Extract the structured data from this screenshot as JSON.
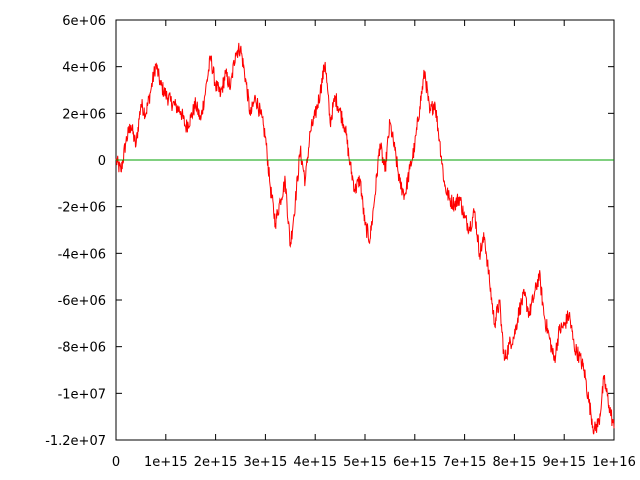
{
  "chart_data": {
    "type": "line",
    "title": "",
    "xlabel": "",
    "ylabel": "",
    "xlim": [
      0,
      1e+16
    ],
    "ylim": [
      -12000000,
      6000000
    ],
    "grid": false,
    "legend": "none",
    "x_ticks": [
      {
        "value": 0,
        "label": "0"
      },
      {
        "value": 1000000000000000.0,
        "label": "1e+15"
      },
      {
        "value": 2000000000000000.0,
        "label": "2e+15"
      },
      {
        "value": 3000000000000000.0,
        "label": "3e+15"
      },
      {
        "value": 4000000000000000.0,
        "label": "4e+15"
      },
      {
        "value": 5000000000000000.0,
        "label": "5e+15"
      },
      {
        "value": 6000000000000000.0,
        "label": "6e+15"
      },
      {
        "value": 7000000000000000.0,
        "label": "7e+15"
      },
      {
        "value": 8000000000000000.0,
        "label": "8e+15"
      },
      {
        "value": 9000000000000000.0,
        "label": "9e+15"
      },
      {
        "value": 1e+16,
        "label": "1e+16"
      }
    ],
    "y_ticks": [
      {
        "value": 6000000,
        "label": "6e+06"
      },
      {
        "value": 4000000,
        "label": "4e+06"
      },
      {
        "value": 2000000,
        "label": "2e+06"
      },
      {
        "value": 0,
        "label": "0"
      },
      {
        "value": -2000000,
        "label": "-2e+06"
      },
      {
        "value": -4000000,
        "label": "-4e+06"
      },
      {
        "value": -6000000,
        "label": "-6e+06"
      },
      {
        "value": -8000000,
        "label": "-8e+06"
      },
      {
        "value": -10000000,
        "label": "-1e+07"
      },
      {
        "value": -12000000,
        "label": "-1.2e+07"
      }
    ],
    "series": [
      {
        "color": "#ff0000",
        "x": [
          0,
          100000000000000.0,
          200000000000000.0,
          300000000000000.0,
          400000000000000.0,
          500000000000000.0,
          600000000000000.0,
          700000000000000.0,
          800000000000000.0,
          900000000000000.0,
          1000000000000000.0,
          1100000000000000.0,
          1200000000000000.0,
          1300000000000000.0,
          1400000000000000.0,
          1500000000000000.0,
          1600000000000000.0,
          1700000000000000.0,
          1800000000000000.0,
          1900000000000000.0,
          2000000000000000.0,
          2100000000000000.0,
          2200000000000000.0,
          2300000000000000.0,
          2400000000000000.0,
          2500000000000000.0,
          2600000000000000.0,
          2700000000000000.0,
          2800000000000000.0,
          2900000000000000.0,
          3000000000000000.0,
          3100000000000000.0,
          3200000000000000.0,
          3300000000000000.0,
          3400000000000000.0,
          3500000000000000.0,
          3600000000000000.0,
          3700000000000000.0,
          3800000000000000.0,
          3900000000000000.0,
          4000000000000000.0,
          4100000000000000.0,
          4200000000000000.0,
          4300000000000000.0,
          4400000000000000.0,
          4500000000000000.0,
          4600000000000000.0,
          4700000000000000.0,
          4800000000000000.0,
          4900000000000000.0,
          5000000000000000.0,
          5100000000000000.0,
          5200000000000000.0,
          5300000000000000.0,
          5400000000000000.0,
          5500000000000000.0,
          5600000000000000.0,
          5700000000000000.0,
          5800000000000000.0,
          5900000000000000.0,
          6000000000000000.0,
          6100000000000000.0,
          6200000000000000.0,
          6300000000000000.0,
          6400000000000000.0,
          6500000000000000.0,
          6600000000000000.0,
          6700000000000000.0,
          6800000000000000.0,
          6900000000000000.0,
          7000000000000000.0,
          7100000000000000.0,
          7200000000000000.0,
          7300000000000000.0,
          7400000000000000.0,
          7500000000000000.0,
          7600000000000000.0,
          7700000000000000.0,
          7800000000000000.0,
          7900000000000000.0,
          8000000000000000.0,
          8100000000000000.0,
          8200000000000000.0,
          8300000000000000.0,
          8400000000000000.0,
          8500000000000000.0,
          8600000000000000.0,
          8700000000000000.0,
          8800000000000000.0,
          8900000000000000.0,
          9000000000000000.0,
          9100000000000000.0,
          9200000000000000.0,
          9300000000000000.0,
          9400000000000000.0,
          9500000000000000.0,
          9600000000000000.0,
          9700000000000000.0,
          9800000000000000.0,
          9900000000000000.0,
          1e+16
        ],
        "y": [
          0,
          -500000,
          800000,
          1500000,
          600000,
          2400000,
          2000000,
          3000000,
          4100000,
          3200000,
          2800000,
          2500000,
          2300000,
          2100000,
          1400000,
          1800000,
          2400000,
          1700000,
          3000000,
          4400000,
          3200000,
          2800000,
          3700000,
          3100000,
          4600000,
          4800000,
          3500000,
          1900000,
          2700000,
          2000000,
          1000000,
          -1200000,
          -2700000,
          -1700000,
          -900000,
          -3700000,
          -1800000,
          400000,
          -900000,
          1200000,
          1900000,
          2900000,
          4200000,
          1600000,
          2700000,
          2100000,
          1400000,
          -200000,
          -1300000,
          -800000,
          -2800000,
          -3400000,
          -1500000,
          700000,
          -500000,
          1600000,
          400000,
          -1000000,
          -1500000,
          -400000,
          600000,
          2300000,
          3800000,
          2000000,
          2500000,
          800000,
          -1100000,
          -1700000,
          -1900000,
          -1600000,
          -2500000,
          -2900000,
          -2200000,
          -4000000,
          -3300000,
          -5200000,
          -7000000,
          -6100000,
          -8600000,
          -7900000,
          -7500000,
          -6400000,
          -5800000,
          -6600000,
          -5800000,
          -4900000,
          -6700000,
          -7600000,
          -8600000,
          -7300000,
          -7100000,
          -6600000,
          -8000000,
          -8400000,
          -9000000,
          -10400000,
          -11600000,
          -11200000,
          -9400000,
          -10500000,
          -11500000
        ]
      },
      {
        "color": "#00a000",
        "x": [
          0,
          1e+16
        ],
        "y": [
          0,
          0
        ]
      }
    ]
  }
}
